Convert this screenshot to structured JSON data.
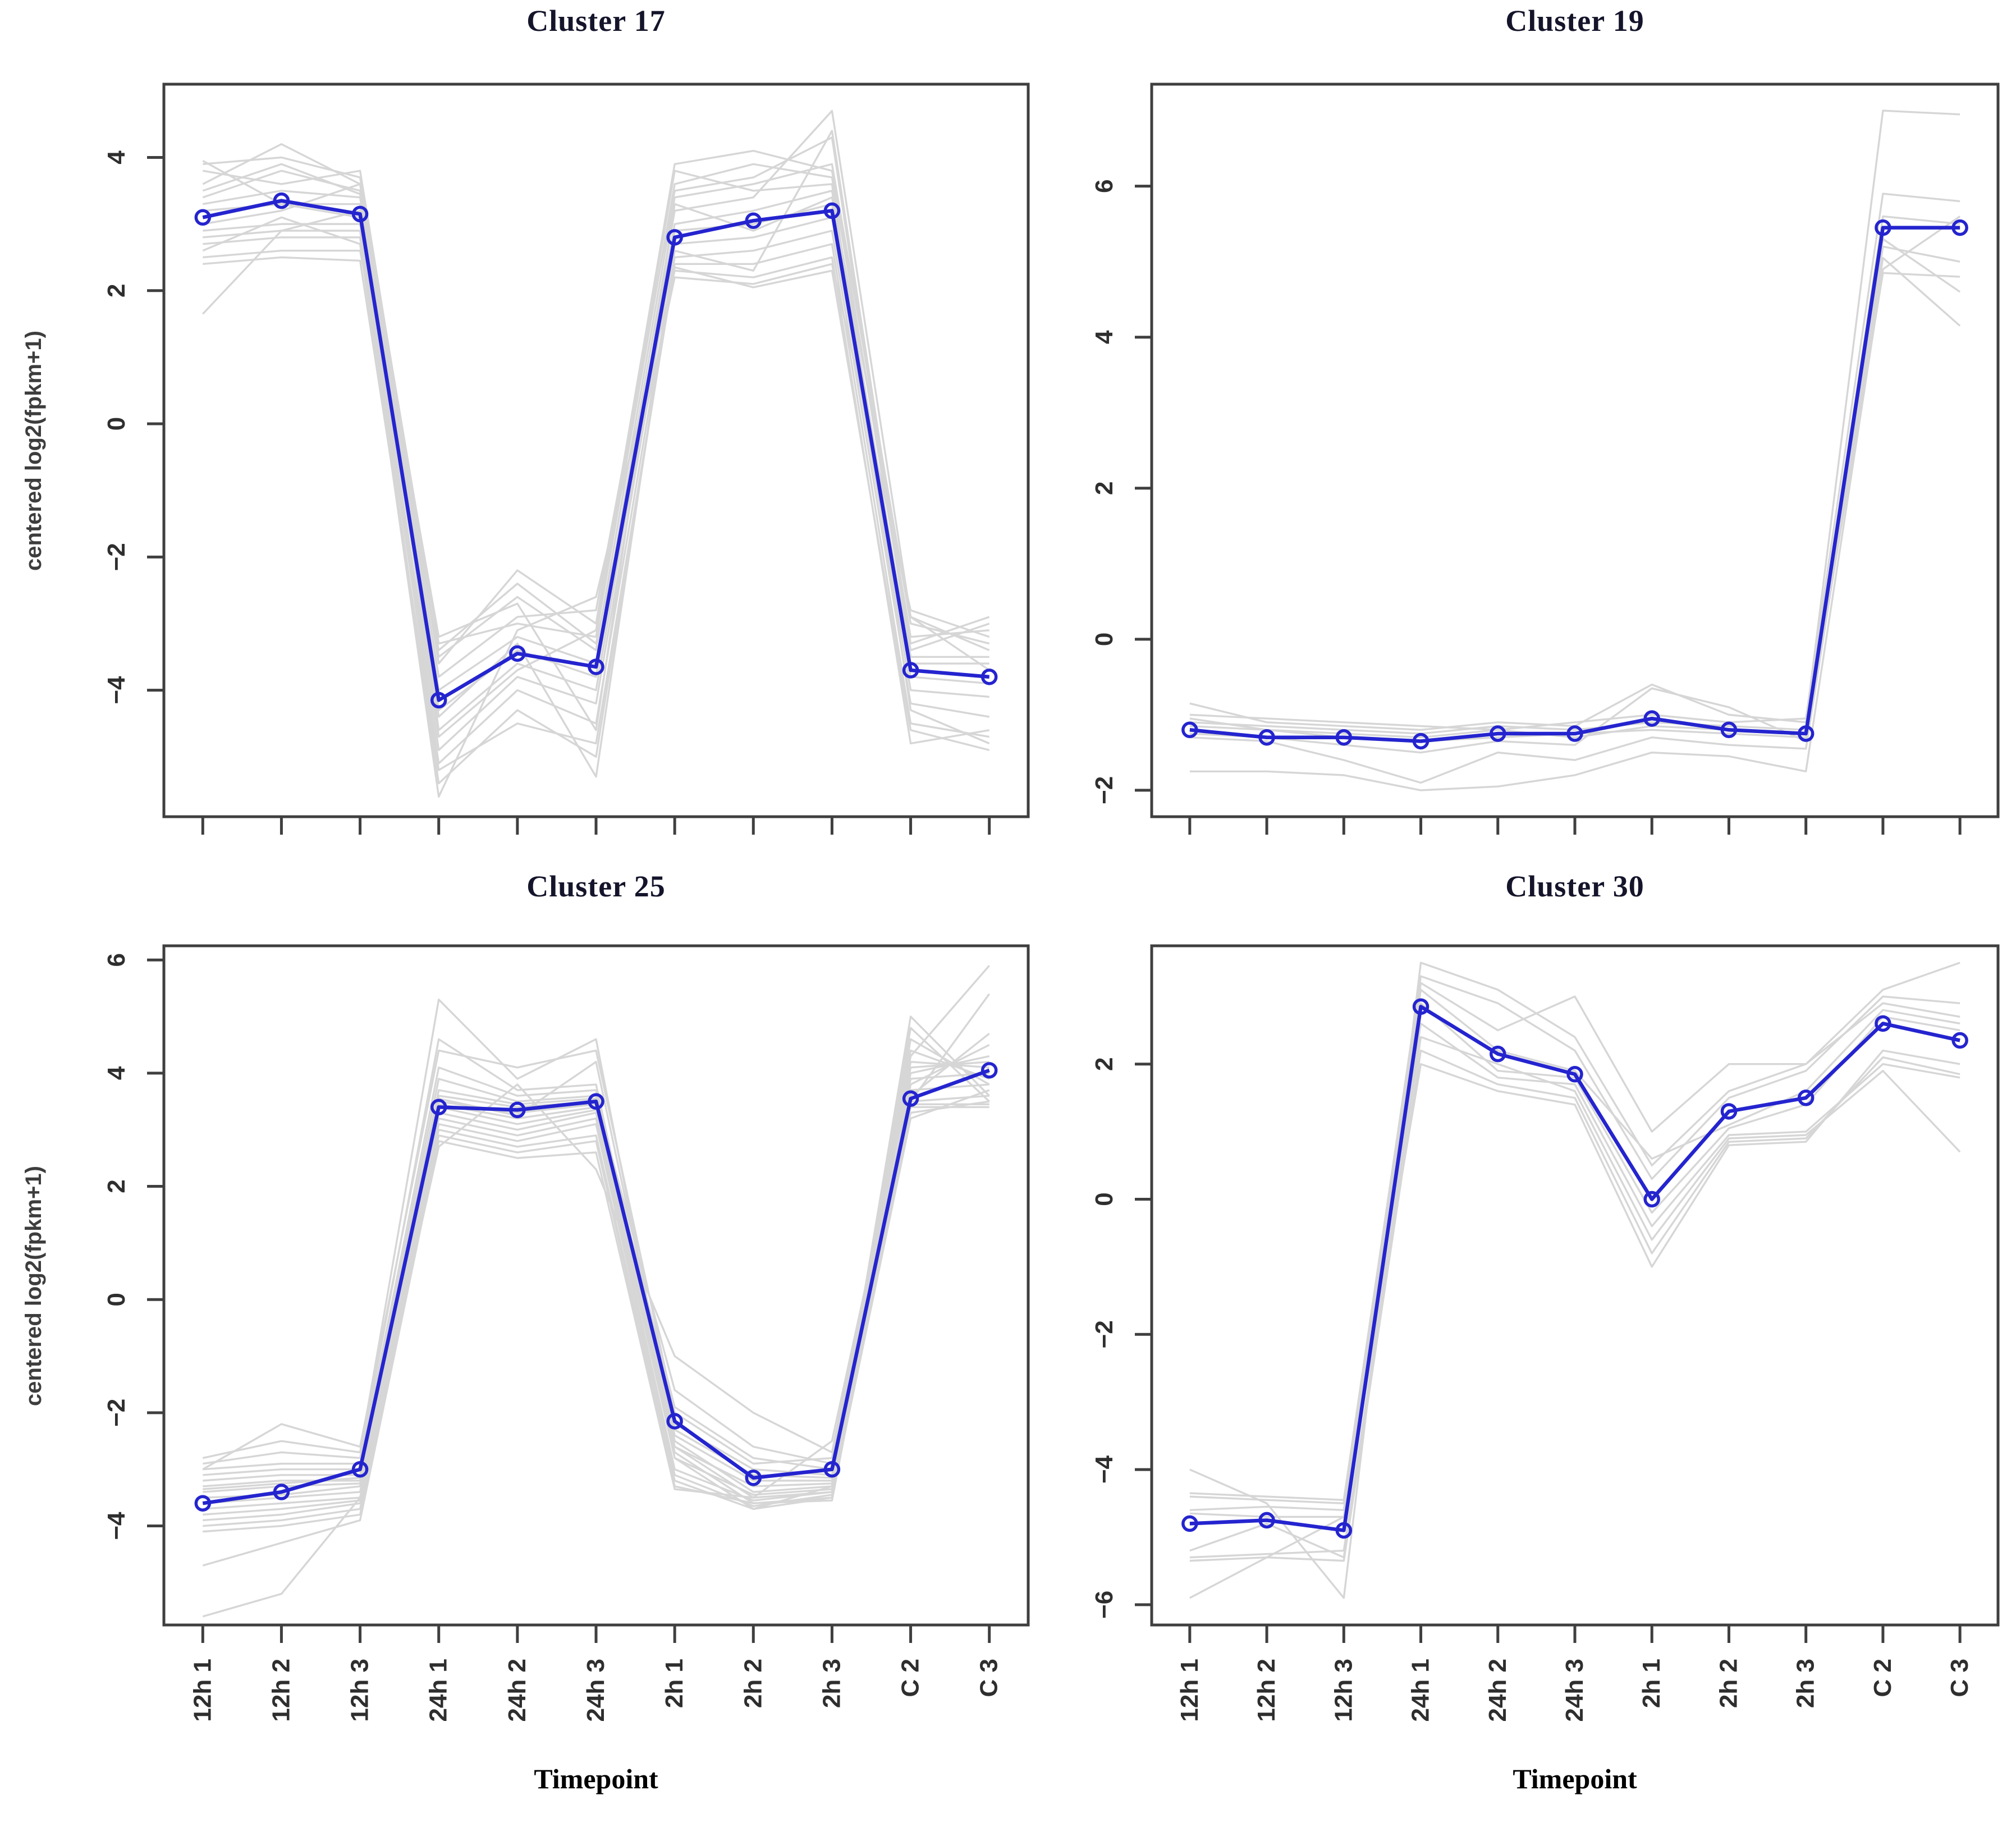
{
  "figure": {
    "background": "#ffffff",
    "colors": {
      "mean_line": "#2424cf",
      "member_line": "#d6d6d6",
      "axis": "#3f3f3f",
      "tick_label": "#2e2e2e",
      "title": "#14142b"
    }
  },
  "chart_data": [
    {
      "type": "line",
      "title": "Cluster 17",
      "ylabel": "centered log2(fpkm+1)",
      "categories": [
        "12h 1",
        "12h 2",
        "12h 3",
        "24h 1",
        "24h 2",
        "24h 3",
        "2h 1",
        "2h 2",
        "2h 3",
        "C 2",
        "C 3"
      ],
      "show_x_tick_labels": false,
      "ylim": [
        -5.9,
        5.1
      ],
      "yticks": [
        -4,
        -2,
        0,
        2,
        4
      ],
      "grid": false,
      "legend": "none",
      "mean_series": [
        3.1,
        3.35,
        3.15,
        -4.15,
        -3.45,
        -3.65,
        2.8,
        3.05,
        3.2,
        -3.7,
        -3.8
      ],
      "members": [
        [
          3.9,
          4.0,
          3.7,
          -3.3,
          -3.0,
          -3.2,
          3.6,
          3.9,
          3.7,
          -3.2,
          -3.1
        ],
        [
          3.8,
          3.6,
          3.8,
          -3.5,
          -2.6,
          -3.4,
          3.4,
          3.6,
          3.9,
          -3.0,
          -3.3
        ],
        [
          3.6,
          4.2,
          3.6,
          -3.6,
          -2.2,
          -3.0,
          3.9,
          4.1,
          3.8,
          -3.4,
          -3.0
        ],
        [
          3.4,
          3.8,
          3.5,
          -3.8,
          -2.9,
          -2.8,
          3.5,
          3.7,
          4.3,
          -3.5,
          -3.5
        ],
        [
          3.3,
          3.5,
          3.4,
          -4.0,
          -3.2,
          -3.6,
          3.2,
          3.4,
          4.7,
          -2.9,
          -3.4
        ],
        [
          3.2,
          3.3,
          3.3,
          -4.3,
          -3.4,
          -3.8,
          3.0,
          3.2,
          3.5,
          -3.6,
          -3.6
        ],
        [
          3.0,
          3.2,
          3.6,
          -4.6,
          -3.6,
          -4.0,
          2.9,
          3.0,
          3.3,
          -3.8,
          -3.9
        ],
        [
          2.9,
          3.0,
          3.0,
          -4.9,
          -3.8,
          -4.2,
          2.7,
          2.8,
          3.1,
          -4.0,
          -4.1
        ],
        [
          2.8,
          2.9,
          2.9,
          -5.1,
          -4.0,
          -4.5,
          2.5,
          2.6,
          2.9,
          -4.2,
          -4.4
        ],
        [
          2.7,
          2.8,
          2.8,
          -5.4,
          -4.3,
          -5.0,
          2.4,
          2.4,
          2.7,
          -4.5,
          -4.7
        ],
        [
          2.6,
          3.1,
          2.7,
          -5.6,
          -3.1,
          -2.6,
          2.3,
          2.2,
          2.5,
          -4.8,
          -4.6
        ],
        [
          2.5,
          2.6,
          2.6,
          -3.4,
          -2.4,
          -3.3,
          2.2,
          2.1,
          2.4,
          -2.8,
          -3.2
        ],
        [
          1.65,
          2.9,
          3.2,
          -4.4,
          -3.3,
          -5.3,
          2.6,
          2.3,
          4.4,
          -3.3,
          -2.9
        ],
        [
          3.95,
          3.3,
          3.1,
          -4.7,
          -3.7,
          -3.1,
          3.8,
          3.5,
          3.6,
          -4.3,
          -4.8
        ],
        [
          2.4,
          2.5,
          2.45,
          -5.2,
          -4.5,
          -4.8,
          2.35,
          2.05,
          2.3,
          -4.6,
          -4.9
        ],
        [
          3.5,
          3.9,
          3.45,
          -3.2,
          -2.7,
          -4.6,
          3.3,
          2.9,
          3.4,
          -2.9,
          -3.7
        ]
      ]
    },
    {
      "type": "line",
      "title": "Cluster 19",
      "ylabel": "",
      "categories": [
        "12h 1",
        "12h 2",
        "12h 3",
        "24h 1",
        "24h 2",
        "24h 3",
        "2h 1",
        "2h 2",
        "2h 3",
        "C 2",
        "C 3"
      ],
      "show_x_tick_labels": false,
      "ylim": [
        -2.35,
        7.35
      ],
      "yticks": [
        -2,
        0,
        2,
        4,
        6
      ],
      "grid": false,
      "legend": "none",
      "mean_series": [
        -1.2,
        -1.3,
        -1.3,
        -1.35,
        -1.25,
        -1.25,
        -1.05,
        -1.2,
        -1.25,
        5.45,
        5.45
      ],
      "members": [
        [
          -0.85,
          -1.1,
          -1.15,
          -1.2,
          -1.1,
          -1.15,
          -0.6,
          -1.0,
          -1.1,
          7.0,
          6.95
        ],
        [
          -1.0,
          -1.05,
          -1.1,
          -1.15,
          -1.2,
          -1.1,
          -1.0,
          -1.1,
          -1.05,
          5.9,
          5.8
        ],
        [
          -1.1,
          -1.15,
          -1.2,
          -1.25,
          -1.15,
          -1.2,
          -1.1,
          -1.15,
          -1.2,
          5.6,
          5.5
        ],
        [
          -1.15,
          -1.2,
          -1.3,
          -1.35,
          -1.3,
          -1.25,
          -1.2,
          -1.25,
          -1.3,
          5.2,
          5.0
        ],
        [
          -1.25,
          -1.3,
          -1.4,
          -1.5,
          -1.35,
          -1.4,
          -0.65,
          -0.9,
          -1.35,
          4.85,
          4.8
        ],
        [
          -1.3,
          -1.35,
          -1.6,
          -1.9,
          -1.5,
          -1.6,
          -1.3,
          -1.4,
          -1.45,
          5.05,
          4.15
        ],
        [
          -1.75,
          -1.75,
          -1.8,
          -2.0,
          -1.95,
          -1.8,
          -1.5,
          -1.55,
          -1.75,
          4.9,
          5.6
        ],
        [
          -1.05,
          -1.2,
          -1.25,
          -1.3,
          -1.2,
          -1.3,
          -1.15,
          -1.2,
          -1.25,
          5.3,
          4.6
        ]
      ]
    },
    {
      "type": "line",
      "title": "Cluster 25",
      "ylabel": "centered log2(fpkm+1)",
      "xlabel": "Timepoint",
      "categories": [
        "12h 1",
        "12h 2",
        "12h 3",
        "24h 1",
        "24h 2",
        "24h 3",
        "2h 1",
        "2h 2",
        "2h 3",
        "C 2",
        "C 3"
      ],
      "show_x_tick_labels": true,
      "ylim": [
        -5.75,
        6.25
      ],
      "yticks": [
        -4,
        -2,
        0,
        2,
        4,
        6
      ],
      "grid": false,
      "legend": "none",
      "mean_series": [
        -3.6,
        -3.4,
        -3.0,
        3.4,
        3.35,
        3.5,
        -2.15,
        -3.15,
        -3.0,
        3.55,
        4.05
      ],
      "members": [
        [
          -2.8,
          -2.5,
          -2.7,
          5.3,
          3.9,
          4.6,
          -2.5,
          -3.4,
          -3.3,
          5.0,
          3.6
        ],
        [
          -2.9,
          -2.7,
          -2.8,
          4.6,
          3.7,
          3.8,
          -2.6,
          -3.5,
          -3.4,
          4.8,
          3.5
        ],
        [
          -3.0,
          -2.9,
          -2.9,
          4.1,
          3.6,
          3.7,
          -2.7,
          -3.6,
          -3.5,
          4.6,
          3.8
        ],
        [
          -3.1,
          -3.0,
          -3.0,
          3.9,
          3.5,
          3.6,
          -2.8,
          -3.7,
          -3.3,
          4.4,
          3.9
        ],
        [
          -3.2,
          -3.1,
          -3.1,
          3.7,
          3.45,
          3.55,
          -1.6,
          -2.6,
          -2.9,
          4.2,
          4.1
        ],
        [
          -3.3,
          -3.2,
          -3.2,
          3.6,
          3.4,
          3.5,
          -1.9,
          -2.8,
          -3.0,
          4.0,
          4.3
        ],
        [
          -3.4,
          -3.3,
          -3.25,
          3.5,
          3.3,
          3.45,
          -2.2,
          -3.0,
          -3.1,
          3.8,
          4.5
        ],
        [
          -3.5,
          -3.45,
          -3.3,
          3.45,
          3.2,
          3.4,
          -2.4,
          -3.2,
          -3.2,
          3.6,
          4.7
        ],
        [
          -3.6,
          -3.5,
          -3.4,
          3.4,
          3.1,
          3.35,
          -2.6,
          -3.3,
          -3.25,
          3.5,
          5.4
        ],
        [
          -3.7,
          -3.6,
          -3.5,
          3.3,
          3.0,
          3.3,
          -2.8,
          -3.45,
          -3.35,
          3.4,
          3.4
        ],
        [
          -3.8,
          -3.7,
          -3.55,
          3.2,
          2.9,
          3.2,
          -3.0,
          -3.55,
          -3.4,
          3.3,
          3.5
        ],
        [
          -3.9,
          -3.8,
          -3.6,
          3.1,
          2.8,
          3.1,
          -3.1,
          -3.65,
          -3.45,
          3.2,
          3.7
        ],
        [
          -4.0,
          -3.9,
          -3.7,
          3.0,
          2.7,
          2.9,
          -3.2,
          -3.7,
          -3.5,
          3.5,
          3.6
        ],
        [
          -4.1,
          -4.0,
          -3.8,
          2.9,
          2.6,
          2.8,
          -3.3,
          -3.6,
          -3.55,
          3.7,
          3.8
        ],
        [
          -4.7,
          -4.3,
          -3.9,
          2.8,
          2.5,
          2.6,
          -3.35,
          -3.5,
          -2.5,
          3.9,
          4.0
        ],
        [
          -5.6,
          -5.2,
          -3.5,
          2.7,
          3.8,
          2.3,
          -1.0,
          -2.0,
          -2.7,
          4.1,
          4.2
        ],
        [
          -3.0,
          -2.2,
          -2.6,
          4.4,
          4.1,
          4.4,
          -2.0,
          -2.9,
          -2.8,
          4.3,
          5.9
        ],
        [
          -3.35,
          -3.25,
          -3.15,
          3.55,
          3.25,
          4.2,
          -2.3,
          -3.1,
          -3.15,
          3.45,
          3.45
        ]
      ]
    },
    {
      "type": "line",
      "title": "Cluster 30",
      "ylabel": "",
      "xlabel": "Timepoint",
      "categories": [
        "12h 1",
        "12h 2",
        "12h 3",
        "24h 1",
        "24h 2",
        "24h 3",
        "2h 1",
        "2h 2",
        "2h 3",
        "C 2",
        "C 3"
      ],
      "show_x_tick_labels": true,
      "ylim": [
        -6.3,
        3.75
      ],
      "yticks": [
        -6,
        -4,
        -2,
        0,
        2
      ],
      "grid": false,
      "legend": "none",
      "mean_series": [
        -4.8,
        -4.75,
        -4.9,
        2.85,
        2.15,
        1.85,
        0.0,
        1.3,
        1.5,
        2.6,
        2.35
      ],
      "members": [
        [
          -4.0,
          -4.5,
          -5.9,
          3.5,
          3.1,
          2.4,
          0.5,
          1.6,
          2.0,
          3.1,
          3.5
        ],
        [
          -4.35,
          -4.4,
          -4.45,
          3.3,
          2.9,
          2.2,
          0.3,
          1.5,
          1.9,
          3.0,
          2.9
        ],
        [
          -4.4,
          -4.45,
          -4.5,
          3.2,
          2.5,
          3.0,
          1.0,
          2.0,
          2.0,
          2.9,
          2.7
        ],
        [
          -4.6,
          -4.55,
          -4.6,
          3.1,
          2.2,
          1.9,
          0.6,
          1.1,
          1.6,
          2.8,
          2.6
        ],
        [
          -4.65,
          -4.7,
          -4.7,
          2.9,
          1.9,
          1.8,
          -0.2,
          1.05,
          1.4,
          2.7,
          2.5
        ],
        [
          -5.2,
          -4.8,
          -5.3,
          2.6,
          1.8,
          1.7,
          -0.4,
          0.95,
          1.0,
          2.0,
          1.8
        ],
        [
          -5.3,
          -5.25,
          -5.2,
          2.4,
          2.0,
          1.6,
          -0.6,
          0.9,
          0.95,
          1.9,
          0.7
        ],
        [
          -5.35,
          -5.3,
          -5.35,
          2.2,
          1.7,
          1.5,
          -0.8,
          0.85,
          0.9,
          2.1,
          1.85
        ],
        [
          -5.9,
          -5.3,
          -4.7,
          2.0,
          1.6,
          1.4,
          -1.0,
          0.8,
          0.85,
          2.2,
          2.0
        ]
      ]
    }
  ]
}
